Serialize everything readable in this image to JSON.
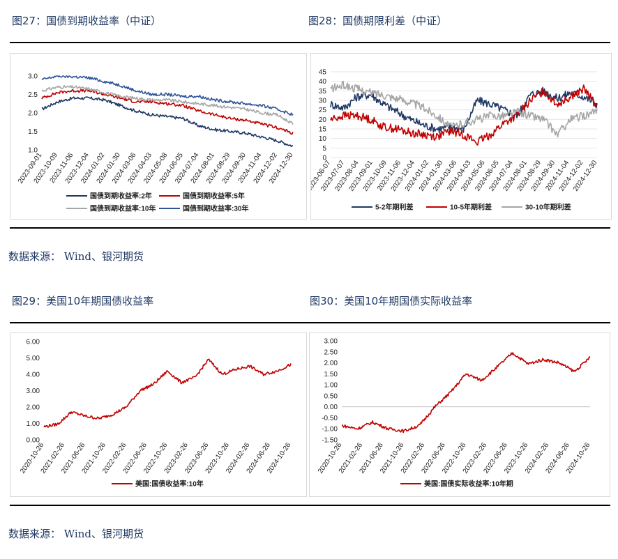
{
  "section1": {
    "fig27_title": "图27：国债到期收益率（中证）",
    "fig28_title": "图28：国债期限利差（中证）",
    "source": "数据来源：   Wind、银河期货"
  },
  "section2": {
    "fig29_title": "图29：美国10年期国债收益率",
    "fig30_title": "图30：美国10年期国债实际收益率",
    "source": "数据来源：   Wind、银河期货"
  },
  "chart_data": [
    {
      "id": "fig27",
      "type": "line",
      "title": "",
      "ylim": [
        1.0,
        3.0
      ],
      "yticks": [
        "1.0",
        "1.5",
        "2.0",
        "2.5",
        "3.0"
      ],
      "xticks": [
        "2023-09-01",
        "2023-10-09",
        "2023-11-06",
        "2023-12-04",
        "2024-01-02",
        "2024-01-30",
        "2024-03-06",
        "2024-04-03",
        "2024-05-08",
        "2024-06-05",
        "2024-07-04",
        "2024-08-01",
        "2024-08-29",
        "2024-09-30",
        "2024-11-04",
        "2024-12-02",
        "2024-12-30"
      ],
      "legend_position": "bottom",
      "series": [
        {
          "name": "国债到期收益率:2年",
          "color": "#1f3864",
          "values": [
            2.1,
            2.3,
            2.4,
            2.4,
            2.35,
            2.2,
            2.05,
            1.95,
            1.9,
            1.85,
            1.65,
            1.55,
            1.5,
            1.45,
            1.35,
            1.25,
            1.1
          ]
        },
        {
          "name": "国债到期收益率:5年",
          "color": "#c00000",
          "values": [
            2.4,
            2.55,
            2.6,
            2.6,
            2.5,
            2.4,
            2.3,
            2.3,
            2.25,
            2.2,
            2.05,
            1.95,
            1.85,
            1.8,
            1.7,
            1.6,
            1.45
          ]
        },
        {
          "name": "国债到期收益率:10年",
          "color": "#a6a6a6",
          "values": [
            2.6,
            2.7,
            2.7,
            2.65,
            2.55,
            2.45,
            2.4,
            2.35,
            2.35,
            2.3,
            2.25,
            2.2,
            2.15,
            2.1,
            2.0,
            1.95,
            1.7
          ]
        },
        {
          "name": "国债到期收益率:30年",
          "color": "#2e5597",
          "values": [
            2.9,
            3.0,
            2.98,
            2.95,
            2.85,
            2.75,
            2.6,
            2.5,
            2.5,
            2.45,
            2.45,
            2.35,
            2.3,
            2.25,
            2.2,
            2.1,
            1.95
          ]
        }
      ]
    },
    {
      "id": "fig28",
      "type": "line",
      "title": "",
      "ylim": [
        0,
        45
      ],
      "yticks": [
        "0",
        "5",
        "10",
        "15",
        "20",
        "25",
        "30",
        "35",
        "40",
        "45"
      ],
      "xticks": [
        "2023-06-07",
        "2023-07-07",
        "2023-08-04",
        "2023-09-01",
        "2023-10-09",
        "2023-11-06",
        "2023-12-04",
        "2024-01-02",
        "2024-01-30",
        "2024-03-06",
        "2024-04-03",
        "2024-05-06",
        "2024-06-05",
        "2024-07-04",
        "2024-08-01",
        "2024-08-29",
        "2024-09-30",
        "2024-11-04",
        "2024-12-02",
        "2024-12-30"
      ],
      "legend_position": "bottom",
      "series": [
        {
          "name": "5-2年期利差",
          "color": "#1f3864",
          "values": [
            28,
            26,
            32,
            33,
            28,
            24,
            20,
            17,
            15,
            16,
            15,
            30,
            28,
            25,
            22,
            33,
            35,
            31,
            34,
            32,
            28
          ]
        },
        {
          "name": "10-5年期利差",
          "color": "#c00000",
          "values": [
            20,
            22,
            22,
            20,
            16,
            15,
            13,
            12,
            11,
            14,
            12,
            8,
            12,
            18,
            22,
            30,
            35,
            28,
            32,
            36,
            27
          ]
        },
        {
          "name": "30-10年期利差",
          "color": "#a6a6a6",
          "values": [
            36,
            38,
            36,
            34,
            33,
            31,
            29,
            26,
            22,
            16,
            18,
            20,
            22,
            22,
            24,
            22,
            20,
            12,
            20,
            22,
            24
          ]
        }
      ]
    },
    {
      "id": "fig29",
      "type": "line",
      "title": "",
      "ylim": [
        0.0,
        6.0
      ],
      "yticks": [
        "0.00",
        "1.00",
        "2.00",
        "3.00",
        "4.00",
        "5.00",
        "6.00"
      ],
      "xticks": [
        "2020-10-26",
        "2021-02-26",
        "2021-06-26",
        "2021-10-26",
        "2022-02-26",
        "2022-06-26",
        "2022-10-26",
        "2023-02-26",
        "2023-06-26",
        "2023-10-26",
        "2024-02-26",
        "2024-06-26",
        "2024-10-26"
      ],
      "legend_position": "bottom",
      "series": [
        {
          "name": "美国:国债收益率:10年",
          "color": "#c00000",
          "values": [
            0.8,
            0.95,
            1.7,
            1.45,
            1.3,
            1.55,
            2.0,
            3.0,
            3.4,
            4.2,
            3.5,
            3.8,
            4.9,
            4.0,
            4.3,
            4.5,
            4.0,
            4.2,
            4.6
          ]
        }
      ]
    },
    {
      "id": "fig30",
      "type": "line",
      "title": "",
      "ylim": [
        -1.5,
        3.0
      ],
      "yticks": [
        "-1.50",
        "-1.00",
        "-0.50",
        "0.00",
        "0.50",
        "1.00",
        "1.50",
        "2.00",
        "2.50",
        "3.00"
      ],
      "xticks": [
        "2020-10-26",
        "2021-02-26",
        "2021-06-26",
        "2021-10-26",
        "2022-02-26",
        "2022-06-26",
        "2022-10-26",
        "2023-02-26",
        "2023-06-26",
        "2023-10-26",
        "2024-02-26",
        "2024-06-26",
        "2024-10-26"
      ],
      "legend_position": "bottom",
      "series": [
        {
          "name": "美国:国债实际收益率:10年期",
          "color": "#c00000",
          "values": [
            -0.85,
            -1.0,
            -0.7,
            -1.0,
            -1.1,
            -0.85,
            0.0,
            0.65,
            1.5,
            1.2,
            1.8,
            2.45,
            1.95,
            2.15,
            2.0,
            1.6,
            2.25
          ]
        }
      ]
    }
  ]
}
